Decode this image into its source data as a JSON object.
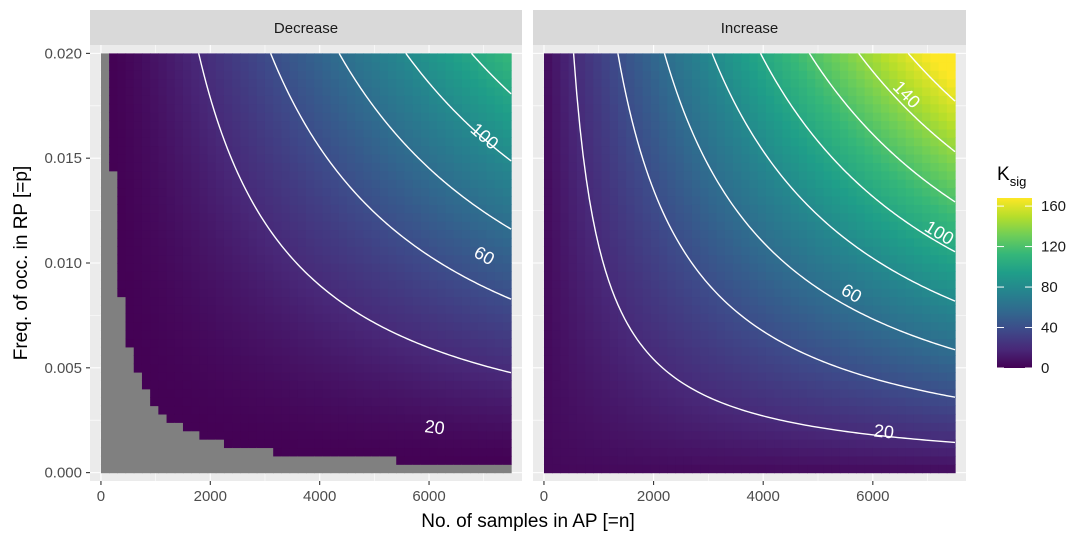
{
  "chart_data": {
    "type": "heatmap",
    "facets": [
      {
        "strip": "Decrease",
        "contour_labels": [
          {
            "text": "20",
            "x": 6100,
            "p": 0.0021
          },
          {
            "text": "60",
            "x": 7000,
            "p": 0.0103
          },
          {
            "text": "100",
            "x": 7000,
            "p": 0.016
          }
        ]
      },
      {
        "strip": "Increase",
        "contour_labels": [
          {
            "text": "20",
            "x": 6200,
            "p": 0.0019
          },
          {
            "text": "60",
            "x": 5600,
            "p": 0.0085
          },
          {
            "text": "100",
            "x": 7200,
            "p": 0.0114
          },
          {
            "text": "140",
            "x": 6600,
            "p": 0.018
          }
        ]
      }
    ],
    "xlabel": "No. of samples in AP [=n]",
    "ylabel": "Freq. of occ. in RP [=p]",
    "x_ticks": [
      "0",
      "2000",
      "4000",
      "6000"
    ],
    "x_tick_values": [
      0,
      2000,
      4000,
      6000
    ],
    "y_ticks": [
      "0.000",
      "0.005",
      "0.010",
      "0.015",
      "0.020"
    ],
    "y_tick_values": [
      0,
      0.005,
      0.01,
      0.015,
      0.02
    ],
    "xlim": [
      -200,
      7700
    ],
    "ylim": [
      -0.0004,
      0.0204
    ],
    "data_range": {
      "n": [
        0,
        7500
      ],
      "p": [
        0,
        0.02
      ]
    },
    "contour_levels": [
      20,
      40,
      60,
      80,
      100,
      120,
      140,
      160
    ],
    "legend": {
      "title_main": "K",
      "title_sub": "sig",
      "ticks": [
        "0",
        "40",
        "80",
        "120",
        "160"
      ],
      "tick_values": [
        0,
        40,
        80,
        120,
        160
      ],
      "range": [
        0,
        168
      ],
      "position": "right",
      "colormap": "viridis"
    },
    "colors": {
      "panel_bg": "#ebebeb",
      "strip_bg": "#d9d9d9",
      "grid": "#ffffff",
      "na_fill": "#808080",
      "contour": "#ffffff",
      "viridis": [
        "#440154",
        "#482878",
        "#3e4989",
        "#31688e",
        "#26828e",
        "#1f9e89",
        "#35b779",
        "#6ece58",
        "#b5de2b",
        "#fde725"
      ]
    }
  }
}
